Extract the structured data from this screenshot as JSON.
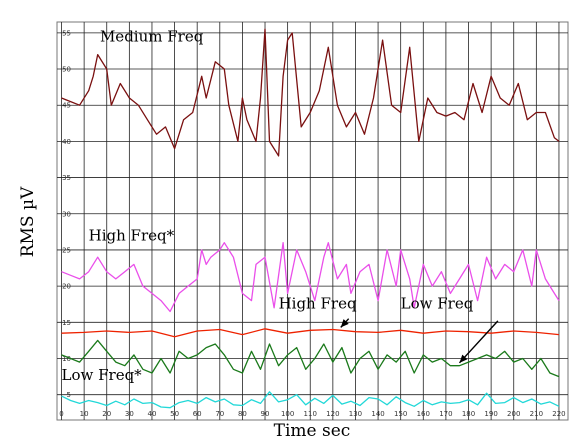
{
  "chart_data": {
    "type": "line",
    "xlabel": "Time sec",
    "ylabel": "RMS  µV",
    "xlim": [
      -2,
      224
    ],
    "ylim": [
      1.5,
      56.5
    ],
    "xticks": [
      0,
      10,
      20,
      30,
      40,
      50,
      60,
      70,
      80,
      90,
      100,
      110,
      120,
      130,
      140,
      150,
      160,
      170,
      180,
      190,
      200,
      210,
      220
    ],
    "yticks": [
      5,
      10,
      15,
      20,
      25,
      30,
      35,
      40,
      45,
      50,
      55
    ],
    "grid": true,
    "series": [
      {
        "color": "#7a1010",
        "x": [
          0,
          4,
          8,
          12,
          14,
          16,
          20,
          22,
          26,
          30,
          34,
          38,
          42,
          46,
          50,
          54,
          58,
          62,
          64,
          68,
          72,
          74,
          78,
          80,
          82,
          86,
          88,
          90,
          92,
          96,
          98,
          100,
          102,
          106,
          110,
          114,
          118,
          122,
          126,
          130,
          134,
          138,
          142,
          146,
          150,
          154,
          158,
          162,
          166,
          170,
          174,
          178,
          182,
          186,
          190,
          194,
          198,
          202,
          206,
          210,
          214,
          218,
          220
        ],
        "values": [
          46,
          45.5,
          45,
          47,
          49,
          52,
          50,
          45,
          48,
          46,
          45,
          43,
          41,
          42,
          39,
          43,
          44,
          49,
          46,
          51,
          50,
          45,
          40,
          46,
          43,
          40,
          46,
          55.5,
          40,
          38,
          49,
          54,
          55,
          42,
          44,
          47,
          53,
          45,
          42,
          44,
          41,
          46,
          54,
          45,
          44,
          53,
          40,
          46,
          44,
          43.5,
          44,
          43,
          48,
          44,
          49,
          46,
          45,
          48,
          43,
          44,
          44,
          40.5,
          40
        ]
      },
      {
        "color": "#ea4fea",
        "x": [
          0,
          4,
          8,
          12,
          16,
          20,
          24,
          28,
          32,
          36,
          40,
          44,
          48,
          52,
          56,
          60,
          62,
          64,
          66,
          70,
          72,
          76,
          80,
          84,
          86,
          90,
          94,
          98,
          100,
          104,
          108,
          112,
          116,
          118,
          122,
          126,
          128,
          132,
          136,
          140,
          144,
          148,
          150,
          154,
          156,
          160,
          164,
          168,
          172,
          176,
          180,
          184,
          188,
          192,
          196,
          200,
          204,
          208,
          210,
          214,
          218,
          220
        ],
        "values": [
          22,
          21.5,
          21,
          22,
          24,
          22,
          21,
          22,
          23,
          20,
          19,
          18,
          16.5,
          19,
          20,
          21,
          25,
          23,
          24,
          25,
          26,
          24,
          19,
          18,
          23,
          24,
          17,
          26,
          19,
          25,
          22,
          18,
          24,
          26,
          21,
          23,
          19,
          22,
          23,
          18,
          25,
          20,
          25,
          21,
          17,
          23,
          20,
          22,
          19,
          21,
          23,
          18,
          24,
          21,
          23,
          22,
          25,
          20,
          25,
          21,
          19,
          18
        ]
      },
      {
        "color": "#ee2200",
        "x": [
          0,
          10,
          20,
          30,
          40,
          50,
          60,
          70,
          80,
          90,
          100,
          110,
          120,
          130,
          140,
          150,
          160,
          170,
          180,
          190,
          200,
          210,
          220
        ],
        "values": [
          13.5,
          13.6,
          13.8,
          13.6,
          13.8,
          13.0,
          13.8,
          14.0,
          13.3,
          14.1,
          13.5,
          13.9,
          14.0,
          13.7,
          13.6,
          13.9,
          13.5,
          13.8,
          13.7,
          13.5,
          13.8,
          13.6,
          13.3
        ]
      },
      {
        "color": "#1b7a1b",
        "x": [
          0,
          4,
          8,
          12,
          16,
          20,
          24,
          28,
          32,
          36,
          40,
          44,
          48,
          52,
          56,
          60,
          64,
          68,
          72,
          76,
          80,
          84,
          88,
          92,
          96,
          100,
          104,
          108,
          112,
          116,
          120,
          124,
          128,
          132,
          136,
          140,
          144,
          148,
          152,
          156,
          160,
          164,
          168,
          172,
          176,
          180,
          184,
          188,
          192,
          196,
          200,
          204,
          208,
          212,
          216,
          220
        ],
        "values": [
          10.5,
          10,
          9.5,
          11,
          12.5,
          11,
          9.5,
          9,
          10.5,
          8.5,
          8,
          10,
          8,
          11,
          10,
          10.5,
          11.5,
          12,
          10.5,
          8.5,
          8,
          11,
          8.5,
          12,
          9,
          10.5,
          11.5,
          8.5,
          10,
          12,
          9.5,
          11.5,
          8,
          10,
          11,
          8.5,
          10.5,
          9.5,
          11,
          8,
          10.5,
          9.5,
          10,
          9,
          9,
          9.5,
          10,
          10.5,
          10,
          11,
          9.5,
          10,
          8.5,
          10,
          8,
          7.5
        ]
      },
      {
        "color": "#22d8d8",
        "x": [
          0,
          4,
          8,
          12,
          16,
          20,
          24,
          28,
          32,
          36,
          40,
          44,
          48,
          52,
          56,
          60,
          64,
          68,
          72,
          76,
          80,
          84,
          88,
          92,
          96,
          100,
          104,
          108,
          112,
          116,
          120,
          124,
          128,
          132,
          136,
          140,
          144,
          148,
          152,
          156,
          160,
          164,
          168,
          172,
          176,
          180,
          184,
          188,
          192,
          196,
          200,
          204,
          208,
          212,
          216,
          220
        ],
        "values": [
          4.8,
          4.2,
          3.8,
          4.2,
          3.9,
          3.5,
          4.1,
          3.6,
          4.4,
          3.8,
          3.9,
          3.3,
          3.2,
          3.9,
          4.2,
          3.8,
          4.6,
          4.0,
          4.4,
          3.6,
          3.5,
          4.3,
          3.8,
          5.4,
          4.0,
          4.3,
          5.0,
          3.6,
          4.5,
          3.8,
          4.9,
          3.7,
          4.1,
          3.5,
          4.6,
          4.4,
          3.6,
          4.7,
          3.9,
          3.4,
          4.2,
          3.6,
          4.0,
          3.8,
          3.9,
          4.3,
          3.6,
          5.2,
          3.8,
          3.9,
          4.6,
          3.9,
          4.4,
          3.7,
          4.0,
          3.4
        ]
      }
    ],
    "annotations": [
      {
        "text": "Medium Freq",
        "x": 17,
        "y": 53.8
      },
      {
        "text": "High Freq*",
        "x": 12,
        "y": 26.3
      },
      {
        "text": "High Freq",
        "x": 96,
        "y": 16.9
      },
      {
        "text": "Low Freq",
        "x": 150,
        "y": 16.9
      },
      {
        "text": "Low Freq*",
        "x": 0,
        "y": 7.0
      }
    ],
    "arrows": [
      {
        "from": [
          127,
          15.5
        ],
        "to": [
          123.5,
          14.3
        ]
      },
      {
        "from": [
          193,
          15.2
        ],
        "to": [
          176,
          9.4
        ]
      }
    ]
  }
}
